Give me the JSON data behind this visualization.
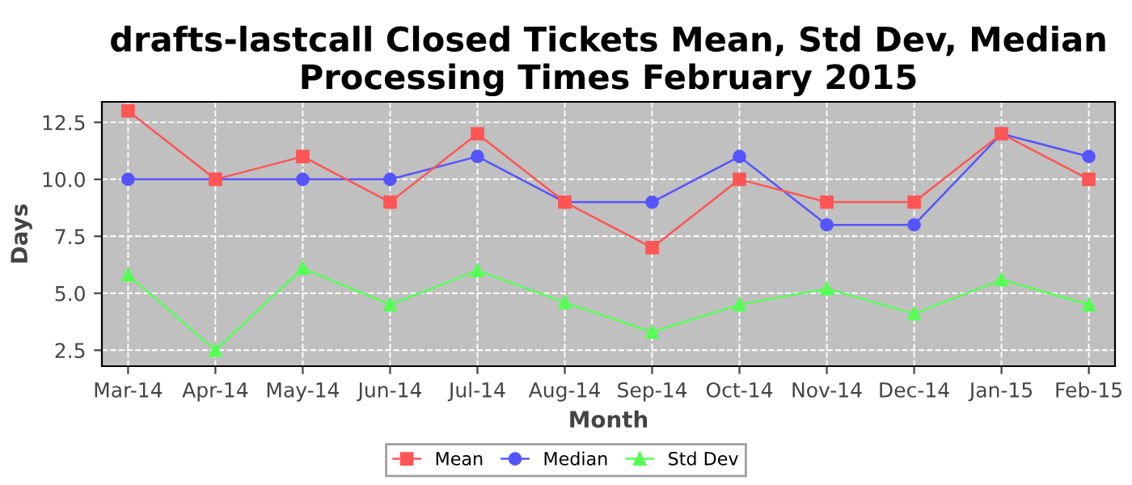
{
  "chart_data": {
    "type": "line",
    "title": "drafts-lastcall Closed Tickets Mean, Std Dev, Median Processing Times February 2015",
    "xlabel": "Month",
    "ylabel": "Days",
    "categories": [
      "Mar-14",
      "Apr-14",
      "May-14",
      "Jun-14",
      "Jul-14",
      "Aug-14",
      "Sep-14",
      "Oct-14",
      "Nov-14",
      "Dec-14",
      "Jan-15",
      "Feb-15"
    ],
    "series": [
      {
        "name": "Mean",
        "color": "#ff5555",
        "marker": "square",
        "values": [
          13,
          10,
          11,
          9,
          12,
          9,
          7,
          10,
          9,
          9,
          12,
          10
        ]
      },
      {
        "name": "Median",
        "color": "#5555ff",
        "marker": "circle",
        "values": [
          10,
          10,
          10,
          10,
          11,
          9,
          9,
          11,
          8,
          8,
          12,
          11
        ]
      },
      {
        "name": "Std Dev",
        "color": "#55ff55",
        "marker": "triangle",
        "values": [
          5.8,
          2.5,
          6.1,
          4.5,
          6.0,
          4.6,
          3.3,
          4.5,
          5.2,
          4.1,
          5.6,
          4.5
        ]
      }
    ],
    "ylim": [
      1.8,
      13.4
    ],
    "yticks": [
      2.5,
      {
        "value": 5,
        "label": "5.0"
      },
      7.5,
      {
        "value": 10,
        "label": "10.0"
      },
      12.5
    ],
    "grid": true,
    "legend": "bottom",
    "line_style": "solid"
  }
}
